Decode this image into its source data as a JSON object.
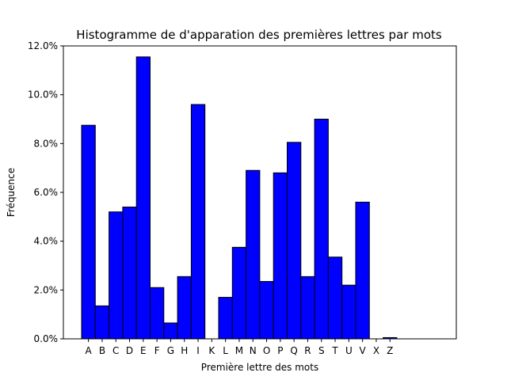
{
  "chart_data": {
    "type": "bar",
    "title": "Histogramme de d'apparation des premières lettres par mots",
    "xlabel": "Première lettre des mots",
    "ylabel": "Fréquence",
    "categories": [
      "A",
      "B",
      "C",
      "D",
      "E",
      "F",
      "G",
      "H",
      "I",
      "K",
      "L",
      "M",
      "N",
      "O",
      "P",
      "Q",
      "R",
      "S",
      "T",
      "U",
      "V",
      "X",
      "Z"
    ],
    "values": [
      8.75,
      1.35,
      5.2,
      5.4,
      11.55,
      2.1,
      0.65,
      2.55,
      9.6,
      0.0,
      1.7,
      3.75,
      6.9,
      2.35,
      6.8,
      8.05,
      2.55,
      9.0,
      3.35,
      2.2,
      5.6,
      0.0,
      0.05
    ],
    "ylim": [
      0,
      12
    ],
    "yticks": [
      0,
      2,
      4,
      6,
      8,
      10,
      12
    ],
    "ytick_labels": [
      "0.0%",
      "2.0%",
      "4.0%",
      "6.0%",
      "8.0%",
      "10.0%",
      "12.0%"
    ],
    "bar_color": "#0000ff",
    "edge_color": "#000000",
    "grid": false,
    "legend": "none"
  }
}
